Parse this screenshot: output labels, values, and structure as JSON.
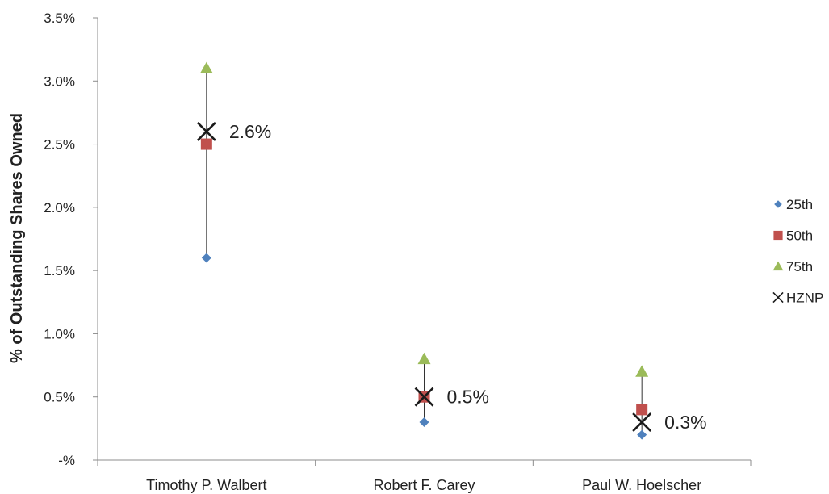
{
  "chart_data": {
    "type": "scatter",
    "ylabel": "% of Outstanding Shares Owned",
    "ylim": [
      0,
      3.5
    ],
    "y_ticks": [
      {
        "value": 0,
        "label": "-%"
      },
      {
        "value": 0.5,
        "label": "0.5%"
      },
      {
        "value": 1.0,
        "label": "1.0%"
      },
      {
        "value": 1.5,
        "label": "1.5%"
      },
      {
        "value": 2.0,
        "label": "2.0%"
      },
      {
        "value": 2.5,
        "label": "2.5%"
      },
      {
        "value": 3.0,
        "label": "3.0%"
      },
      {
        "value": 3.5,
        "label": "3.5%"
      }
    ],
    "categories": [
      "Timothy P. Walbert",
      "Robert F. Carey",
      "Paul W. Hoelscher"
    ],
    "series": [
      {
        "name": "25th",
        "marker": "diamond",
        "color": "#4f81bd",
        "values": [
          1.6,
          0.3,
          0.2
        ]
      },
      {
        "name": "50th",
        "marker": "square",
        "color": "#c0504d",
        "values": [
          2.5,
          0.5,
          0.4
        ]
      },
      {
        "name": "75th",
        "marker": "triangle",
        "color": "#9bbb59",
        "values": [
          3.1,
          0.8,
          0.7
        ]
      },
      {
        "name": "HZNP",
        "marker": "x",
        "color": "#1a1a1a",
        "values": [
          2.6,
          0.5,
          0.3
        ]
      }
    ],
    "data_labels": [
      "2.6%",
      "0.5%",
      "0.3%"
    ],
    "legend_position": "right",
    "grid": false
  }
}
